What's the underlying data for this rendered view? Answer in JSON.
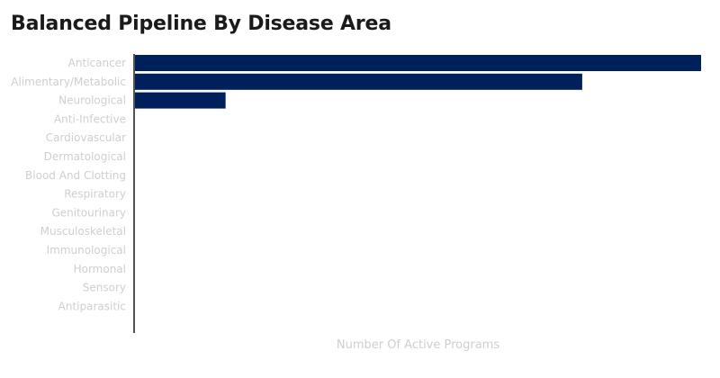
{
  "chart_data": {
    "type": "bar",
    "orientation": "horizontal",
    "title": "Balanced Pipeline By Disease Area",
    "xlabel": "Number Of Active Programs",
    "ylabel": "",
    "categories": [
      "Anticancer",
      "Alimentary/Metabolic",
      "Neurological",
      "Anti-Infective",
      "Cardiovascular",
      "Dermatological",
      "Blood And Clotting",
      "Respiratory",
      "Genitourinary",
      "Musculoskeletal",
      "Immunological",
      "Hormonal",
      "Sensory",
      "Antiparasitic"
    ],
    "values": [
      100,
      79,
      16,
      0,
      0,
      0,
      0,
      0,
      0,
      0,
      0,
      0,
      0,
      0
    ],
    "xlim": [
      0,
      100
    ],
    "grid": false,
    "colors": {
      "bar": "#00205b",
      "title": "#1a1a1a",
      "axis": "#1a1a1a",
      "label": "#cfcfcf"
    }
  }
}
